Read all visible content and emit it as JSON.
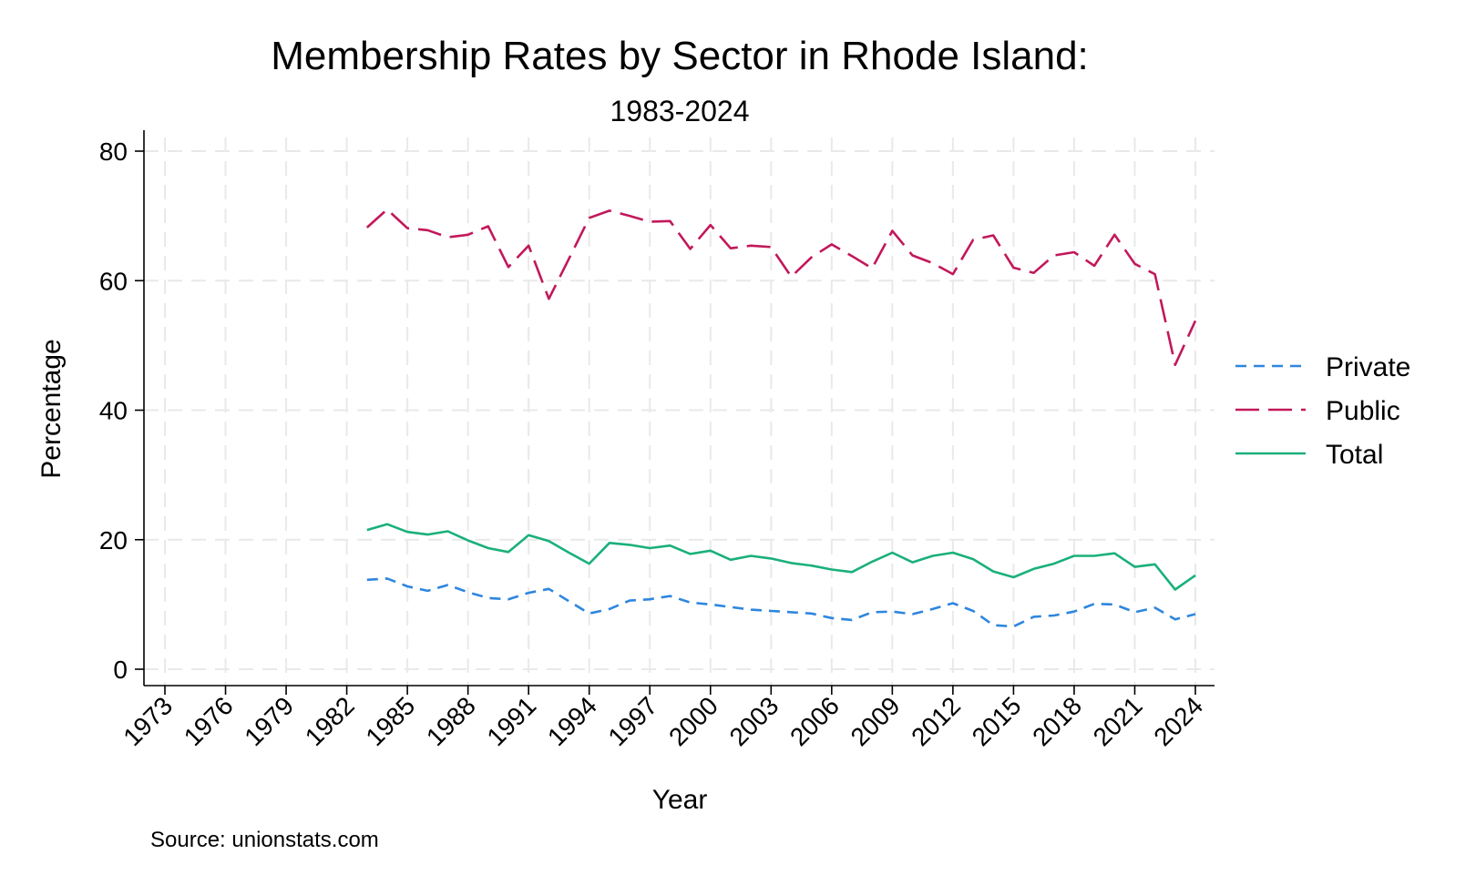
{
  "chart_data": {
    "type": "line",
    "title": "Membership Rates by Sector in Rhode Island:",
    "subtitle": "1983-2024",
    "xlabel": "Year",
    "ylabel": "Percentage",
    "source": "Source: unionstats.com",
    "xlim": [
      1973,
      2024
    ],
    "ylim": [
      0,
      80
    ],
    "x_ticks": [
      1973,
      1976,
      1979,
      1982,
      1985,
      1988,
      1991,
      1994,
      1997,
      2000,
      2003,
      2006,
      2009,
      2012,
      2015,
      2018,
      2021,
      2024
    ],
    "y_ticks": [
      0,
      20,
      40,
      60,
      80
    ],
    "grid": true,
    "legend_position": "right",
    "x": [
      1983,
      1984,
      1985,
      1986,
      1987,
      1988,
      1989,
      1990,
      1991,
      1992,
      1993,
      1994,
      1995,
      1996,
      1997,
      1998,
      1999,
      2000,
      2001,
      2002,
      2003,
      2004,
      2005,
      2006,
      2007,
      2008,
      2009,
      2010,
      2011,
      2012,
      2013,
      2014,
      2015,
      2016,
      2017,
      2018,
      2019,
      2020,
      2021,
      2022,
      2023,
      2024
    ],
    "series": [
      {
        "name": "Private",
        "color": "#2e86de",
        "dash": "short",
        "values": [
          13.8,
          14.0,
          12.8,
          12.1,
          13.0,
          11.9,
          11.0,
          10.8,
          11.8,
          12.4,
          10.5,
          8.6,
          9.3,
          10.6,
          10.8,
          11.3,
          10.3,
          10.0,
          9.6,
          9.2,
          9.0,
          8.8,
          8.6,
          7.9,
          7.6,
          8.8,
          8.9,
          8.5,
          9.3,
          10.2,
          9.0,
          6.8,
          6.6,
          8.1,
          8.3,
          8.9,
          10.1,
          10.0,
          8.8,
          9.5,
          7.7,
          8.5
        ]
      },
      {
        "name": "Public",
        "color": "#c2185b",
        "dash": "long",
        "values": [
          68.2,
          71.0,
          68.1,
          67.8,
          66.7,
          67.1,
          68.4,
          62.1,
          65.4,
          57.2,
          63.4,
          69.7,
          70.8,
          70.0,
          69.1,
          69.2,
          64.9,
          68.6,
          65.0,
          65.4,
          65.2,
          60.6,
          63.6,
          65.6,
          63.8,
          61.9,
          67.7,
          63.9,
          62.7,
          61.0,
          66.3,
          67.0,
          62.0,
          61.2,
          63.9,
          64.4,
          62.3,
          67.1,
          62.6,
          61.0,
          47.0,
          53.8
        ]
      },
      {
        "name": "Total",
        "color": "#1ab07a",
        "dash": "solid",
        "values": [
          21.5,
          22.4,
          21.2,
          20.8,
          21.3,
          19.9,
          18.7,
          18.1,
          20.7,
          19.8,
          18.0,
          16.3,
          19.5,
          19.2,
          18.7,
          19.1,
          17.8,
          18.3,
          16.9,
          17.5,
          17.1,
          16.4,
          16.0,
          15.4,
          15.0,
          16.6,
          18.0,
          16.5,
          17.5,
          18.0,
          17.0,
          15.1,
          14.2,
          15.5,
          16.3,
          17.5,
          17.5,
          17.9,
          15.8,
          16.2,
          12.3,
          14.5
        ]
      }
    ]
  }
}
